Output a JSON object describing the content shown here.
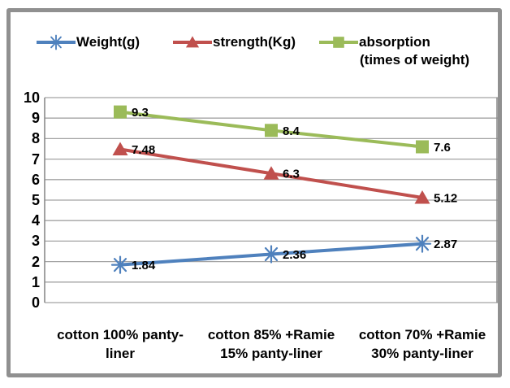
{
  "chart": {
    "frame_color": "#909090",
    "background": "#FFFFFF"
  },
  "chart_data": {
    "type": "line",
    "title": "",
    "xlabel": "",
    "ylabel": "",
    "categories": [
      "cotton 100% panty-\nliner",
      "cotton 85% +Ramie\n15% panty-liner",
      "cotton 70% +Ramie\n30% panty-liner"
    ],
    "series": [
      {
        "name": "Weight(g)",
        "legend_lines": [
          "Weight(g)"
        ],
        "values": [
          1.84,
          2.36,
          2.87
        ],
        "value_labels": [
          "1.84",
          "2.36",
          "2.87"
        ],
        "color": "#4F81BD",
        "marker": "asterisk"
      },
      {
        "name": "strength(Kg)",
        "legend_lines": [
          "strength(Kg)"
        ],
        "values": [
          7.48,
          6.3,
          5.12
        ],
        "value_labels": [
          "7.48",
          "6.3",
          "5.12"
        ],
        "color": "#C0504D",
        "marker": "triangle"
      },
      {
        "name": "absorption (times of weight)",
        "legend_lines": [
          "absorption",
          "(times of weight)"
        ],
        "values": [
          9.3,
          8.4,
          7.6
        ],
        "value_labels": [
          "9.3",
          "8.4",
          "7.6"
        ],
        "color": "#9BBB59",
        "marker": "square"
      }
    ],
    "ylim": [
      0,
      10
    ],
    "y_ticks": [
      0,
      1,
      2,
      3,
      4,
      5,
      6,
      7,
      8,
      9,
      10
    ],
    "grid": true,
    "gridline_color": "#A3A3A3",
    "axis_line_color": "#8A8A8A",
    "value_label_color": "#000000",
    "legend_position": "top"
  }
}
